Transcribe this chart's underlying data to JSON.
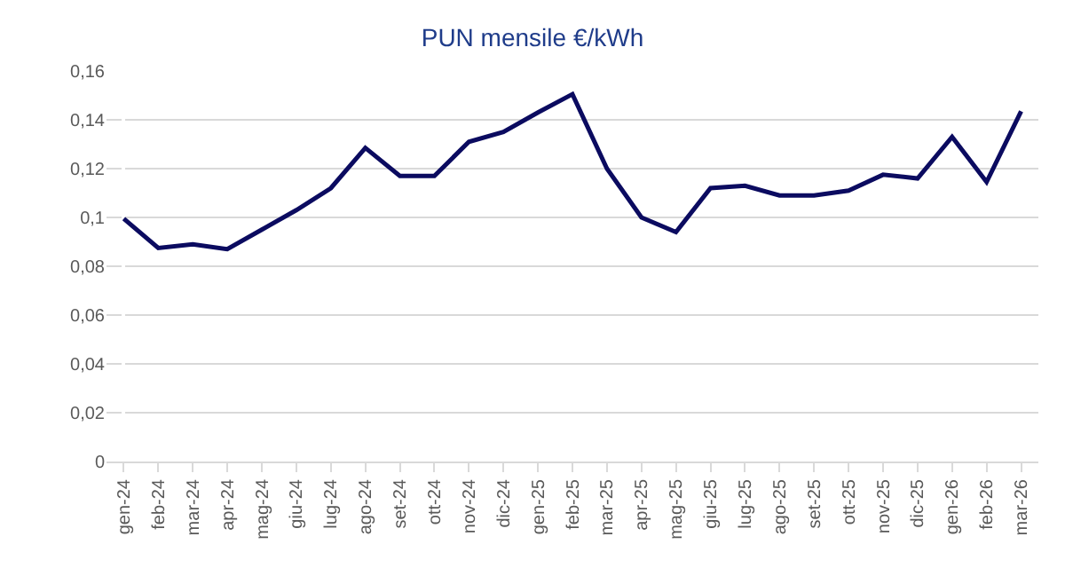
{
  "chart_data": {
    "type": "line",
    "title": "PUN mensile €/kWh",
    "categories": [
      "gen-24",
      "feb-24",
      "mar-24",
      "apr-24",
      "mag-24",
      "giu-24",
      "lug-24",
      "ago-24",
      "set-24",
      "ott-24",
      "nov-24",
      "dic-24",
      "gen-25",
      "feb-25",
      "mar-25",
      "apr-25",
      "mag-25",
      "giu-25",
      "lug-25",
      "ago-25",
      "set-25",
      "ott-25",
      "nov-25",
      "dic-25",
      "gen-26",
      "feb-26",
      "mar-26"
    ],
    "series": [
      {
        "color": "#0b0b60",
        "values": [
          0.0995,
          0.0875,
          0.089,
          0.087,
          0.095,
          0.103,
          0.112,
          0.1285,
          0.117,
          0.117,
          0.131,
          0.135,
          0.143,
          0.1505,
          0.12,
          0.1,
          0.094,
          0.112,
          0.113,
          0.109,
          0.109,
          0.111,
          0.1175,
          0.116,
          0.133,
          0.1145,
          0.1435
        ]
      }
    ],
    "ylim": [
      0,
      0.16
    ],
    "yticks": [
      {
        "value": 0,
        "label": "0"
      },
      {
        "value": 0.02,
        "label": "0,02"
      },
      {
        "value": 0.04,
        "label": "0,04"
      },
      {
        "value": 0.06,
        "label": "0,06"
      },
      {
        "value": 0.08,
        "label": "0,08"
      },
      {
        "value": 0.1,
        "label": "0,1"
      },
      {
        "value": 0.12,
        "label": "0,12"
      },
      {
        "value": 0.14,
        "label": "0,14"
      },
      {
        "value": 0.16,
        "label": "0,16"
      }
    ],
    "grid": "y",
    "marker": "none",
    "line_style": "solid"
  }
}
